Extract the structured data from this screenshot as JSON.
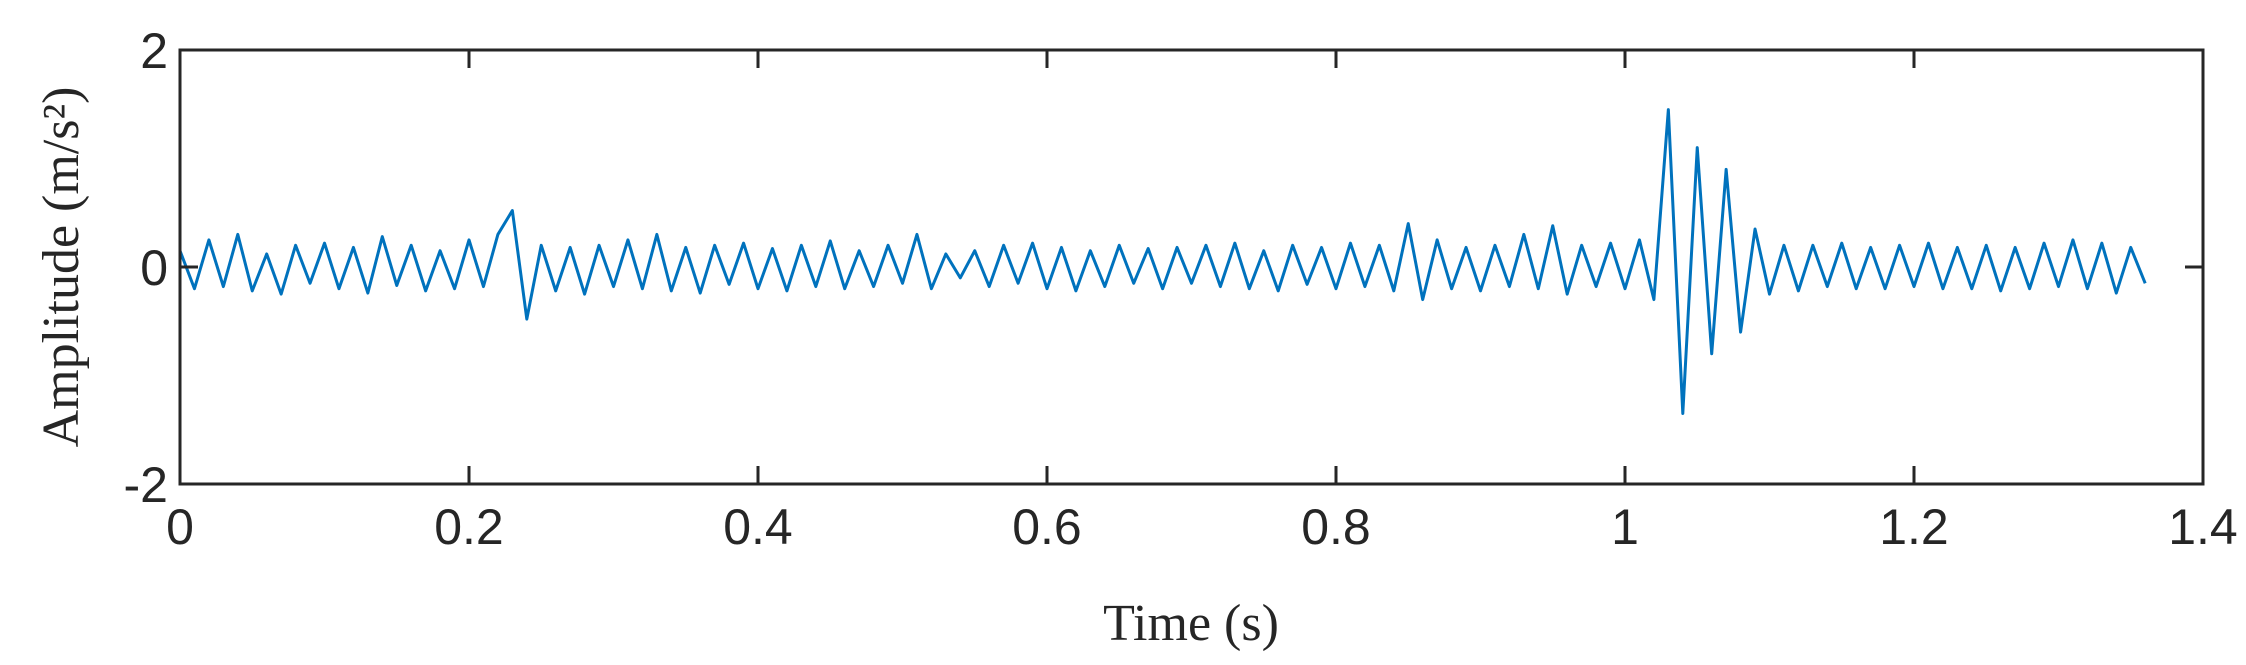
{
  "chart_data": {
    "type": "line",
    "xlabel": "Time (s)",
    "ylabel": "Amplitude (m/s²)",
    "x": [
      0,
      0.01,
      0.02,
      0.03,
      0.04,
      0.05,
      0.06,
      0.07,
      0.08,
      0.09,
      0.1,
      0.11,
      0.12,
      0.13,
      0.14,
      0.15,
      0.16,
      0.17,
      0.18,
      0.19,
      0.2,
      0.21,
      0.22,
      0.23,
      0.24,
      0.25,
      0.26,
      0.27,
      0.28,
      0.29,
      0.3,
      0.31,
      0.32,
      0.33,
      0.34,
      0.35,
      0.36,
      0.37,
      0.38,
      0.39,
      0.4,
      0.41,
      0.42,
      0.43,
      0.44,
      0.45,
      0.46,
      0.47,
      0.48,
      0.49,
      0.5,
      0.51,
      0.52,
      0.53,
      0.54,
      0.55,
      0.56,
      0.57,
      0.58,
      0.59,
      0.6,
      0.61,
      0.62,
      0.63,
      0.64,
      0.65,
      0.66,
      0.67,
      0.68,
      0.69,
      0.7,
      0.71,
      0.72,
      0.73,
      0.74,
      0.75,
      0.76,
      0.77,
      0.78,
      0.79,
      0.8,
      0.81,
      0.82,
      0.83,
      0.84,
      0.85,
      0.86,
      0.87,
      0.88,
      0.89,
      0.9,
      0.91,
      0.92,
      0.93,
      0.94,
      0.95,
      0.96,
      0.97,
      0.98,
      0.99,
      1.0,
      1.01,
      1.02,
      1.03,
      1.04,
      1.05,
      1.06,
      1.07,
      1.08,
      1.09,
      1.1,
      1.11,
      1.12,
      1.13,
      1.14,
      1.15,
      1.16,
      1.17,
      1.18,
      1.19,
      1.2,
      1.21,
      1.22,
      1.23,
      1.24,
      1.25,
      1.26,
      1.27,
      1.28,
      1.29,
      1.3,
      1.31,
      1.32,
      1.33,
      1.34,
      1.35,
      1.36
    ],
    "series": [
      {
        "color": "#0072bd",
        "values": [
          0.15,
          -0.2,
          0.25,
          -0.18,
          0.3,
          -0.22,
          0.12,
          -0.25,
          0.2,
          -0.15,
          0.22,
          -0.2,
          0.18,
          -0.24,
          0.28,
          -0.17,
          0.2,
          -0.22,
          0.15,
          -0.2,
          0.25,
          -0.18,
          0.3,
          0.52,
          -0.48,
          0.2,
          -0.22,
          0.18,
          -0.25,
          0.2,
          -0.18,
          0.25,
          -0.2,
          0.3,
          -0.22,
          0.18,
          -0.24,
          0.2,
          -0.16,
          0.22,
          -0.2,
          0.17,
          -0.22,
          0.2,
          -0.18,
          0.24,
          -0.2,
          0.15,
          -0.18,
          0.2,
          -0.15,
          0.3,
          -0.2,
          0.12,
          -0.1,
          0.15,
          -0.18,
          0.2,
          -0.15,
          0.22,
          -0.2,
          0.18,
          -0.22,
          0.15,
          -0.18,
          0.2,
          -0.15,
          0.17,
          -0.2,
          0.18,
          -0.15,
          0.2,
          -0.18,
          0.22,
          -0.2,
          0.15,
          -0.22,
          0.2,
          -0.16,
          0.18,
          -0.2,
          0.22,
          -0.18,
          0.2,
          -0.22,
          0.4,
          -0.3,
          0.25,
          -0.2,
          0.18,
          -0.22,
          0.2,
          -0.18,
          0.3,
          -0.2,
          0.38,
          -0.25,
          0.2,
          -0.18,
          0.22,
          -0.2,
          0.25,
          -0.3,
          1.45,
          -1.35,
          1.1,
          -0.8,
          0.9,
          -0.6,
          0.35,
          -0.25,
          0.2,
          -0.22,
          0.2,
          -0.18,
          0.22,
          -0.2,
          0.18,
          -0.2,
          0.2,
          -0.18,
          0.22,
          -0.2,
          0.18,
          -0.2,
          0.2,
          -0.22,
          0.18,
          -0.2,
          0.22,
          -0.18,
          0.25,
          -0.2,
          0.22,
          -0.24,
          0.18,
          -0.15
        ]
      }
    ],
    "xlim": [
      0,
      1.4
    ],
    "xticks": [
      0,
      0.2,
      0.4,
      0.6,
      0.8,
      1,
      1.2,
      1.4
    ],
    "ylim": [
      -2,
      2
    ],
    "yticks": [
      -2,
      0,
      2
    ]
  }
}
